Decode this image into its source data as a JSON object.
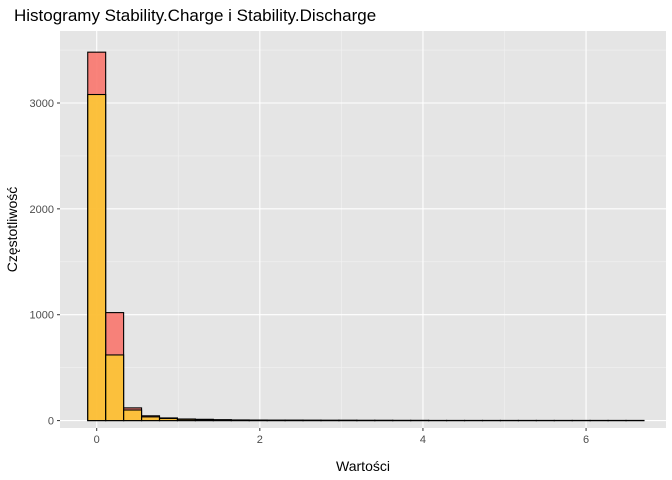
{
  "chart_data": {
    "type": "bar",
    "title": "Histogramy Stability.Charge i Stability.Discharge",
    "xlabel": "Wartości",
    "ylabel": "Częstotliwość",
    "xlim": [
      -0.45,
      6.98
    ],
    "ylim": [
      -70,
      3680
    ],
    "x_ticks": [
      0,
      2,
      4,
      6
    ],
    "y_ticks": [
      0,
      1000,
      2000,
      3000
    ],
    "grid": true,
    "bin_width": 0.22,
    "series": [
      {
        "fill": "#f8766d",
        "fill_opacity": 0.9,
        "bins": [
          {
            "x": 0.0,
            "count": 3480
          },
          {
            "x": 0.22,
            "count": 1020
          },
          {
            "x": 0.44,
            "count": 120
          },
          {
            "x": 0.66,
            "count": 45
          },
          {
            "x": 0.88,
            "count": 25
          },
          {
            "x": 1.1,
            "count": 15
          },
          {
            "x": 1.32,
            "count": 12
          },
          {
            "x": 1.54,
            "count": 8
          },
          {
            "x": 1.76,
            "count": 6
          },
          {
            "x": 1.98,
            "count": 5
          },
          {
            "x": 2.2,
            "count": 4
          },
          {
            "x": 2.42,
            "count": 4
          },
          {
            "x": 2.64,
            "count": 3
          },
          {
            "x": 2.86,
            "count": 3
          },
          {
            "x": 3.08,
            "count": 3
          },
          {
            "x": 3.3,
            "count": 2
          },
          {
            "x": 3.52,
            "count": 2
          },
          {
            "x": 3.74,
            "count": 2
          },
          {
            "x": 3.96,
            "count": 2
          },
          {
            "x": 4.18,
            "count": 1
          },
          {
            "x": 4.4,
            "count": 1
          },
          {
            "x": 4.62,
            "count": 1
          },
          {
            "x": 4.84,
            "count": 1
          },
          {
            "x": 5.06,
            "count": 1
          },
          {
            "x": 5.28,
            "count": 1
          },
          {
            "x": 5.5,
            "count": 1
          },
          {
            "x": 5.72,
            "count": 1
          },
          {
            "x": 5.94,
            "count": 1
          },
          {
            "x": 6.16,
            "count": 1
          },
          {
            "x": 6.38,
            "count": 1
          },
          {
            "x": 6.6,
            "count": 1
          }
        ]
      },
      {
        "fill": "#ffff00",
        "fill_opacity": 0.5,
        "bins": [
          {
            "x": 0.0,
            "count": 3080
          },
          {
            "x": 0.22,
            "count": 620
          },
          {
            "x": 0.44,
            "count": 100
          },
          {
            "x": 0.66,
            "count": 35
          },
          {
            "x": 0.88,
            "count": 20
          },
          {
            "x": 1.1,
            "count": 12
          },
          {
            "x": 1.32,
            "count": 10
          },
          {
            "x": 1.54,
            "count": 7
          },
          {
            "x": 1.76,
            "count": 5
          },
          {
            "x": 1.98,
            "count": 4
          },
          {
            "x": 2.2,
            "count": 3
          },
          {
            "x": 2.42,
            "count": 3
          },
          {
            "x": 2.64,
            "count": 3
          },
          {
            "x": 2.86,
            "count": 2
          },
          {
            "x": 3.08,
            "count": 2
          },
          {
            "x": 3.3,
            "count": 2
          },
          {
            "x": 3.52,
            "count": 2
          },
          {
            "x": 3.74,
            "count": 1
          },
          {
            "x": 3.96,
            "count": 1
          },
          {
            "x": 4.18,
            "count": 1
          },
          {
            "x": 4.4,
            "count": 1
          },
          {
            "x": 4.62,
            "count": 1
          },
          {
            "x": 4.84,
            "count": 1
          },
          {
            "x": 5.06,
            "count": 1
          },
          {
            "x": 5.28,
            "count": 1
          },
          {
            "x": 5.5,
            "count": 1
          },
          {
            "x": 5.72,
            "count": 1
          },
          {
            "x": 5.94,
            "count": 1
          },
          {
            "x": 6.16,
            "count": 1
          },
          {
            "x": 6.38,
            "count": 1
          },
          {
            "x": 6.6,
            "count": 1
          }
        ]
      }
    ],
    "colors": {
      "panel_background": "#e5e5e5",
      "grid_major": "#ffffff",
      "grid_minor": "#f2f2f2",
      "bar_outline": "#000000"
    }
  }
}
